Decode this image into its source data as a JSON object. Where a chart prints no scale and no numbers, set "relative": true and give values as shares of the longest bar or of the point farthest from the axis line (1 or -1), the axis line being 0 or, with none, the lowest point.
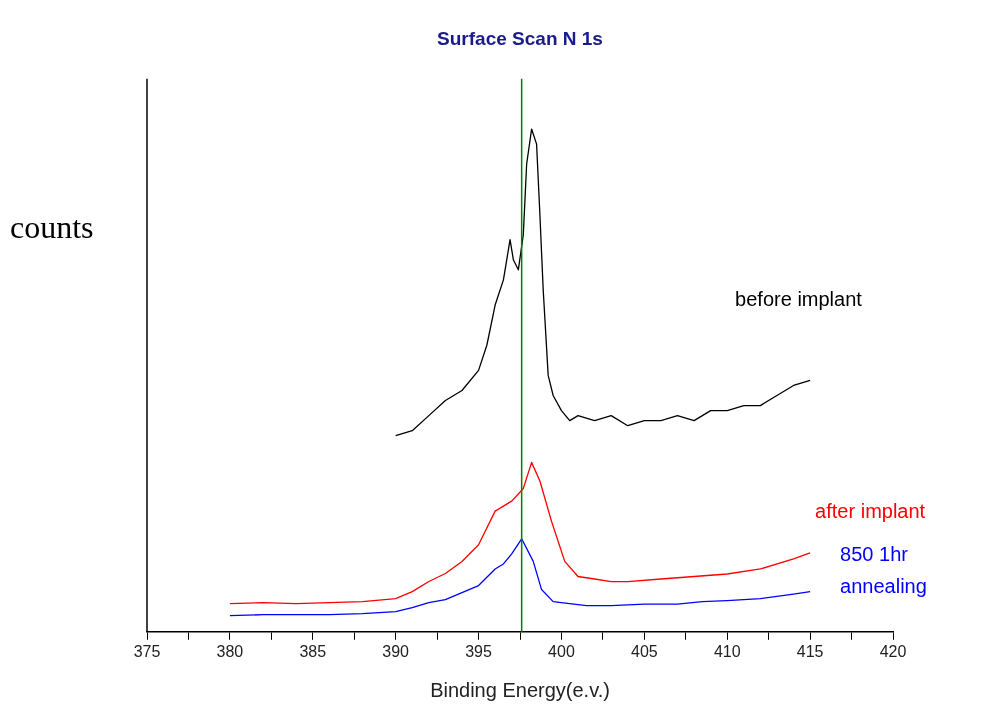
{
  "chart_data": {
    "type": "line",
    "title": "Surface Scan N 1s",
    "xlabel": "Binding Energy(e.v.)",
    "ylabel": "counts",
    "relative": true,
    "xlim": [
      375,
      420
    ],
    "xticks": [
      375,
      {
        "value": 377.5,
        "label": null
      },
      380,
      {
        "value": 382.5,
        "label": null
      },
      385,
      {
        "value": 387.5,
        "label": null
      },
      390,
      {
        "value": 392.5,
        "label": null
      },
      395,
      {
        "value": 397.5,
        "label": null
      },
      400,
      {
        "value": 402.5,
        "label": null
      },
      405,
      {
        "value": 407.5,
        "label": null
      },
      410,
      {
        "value": 412.5,
        "label": null
      },
      415,
      {
        "value": 417.5,
        "label": null
      },
      420
    ],
    "grid": false,
    "legend": false,
    "marker": "none",
    "line_style": "solid",
    "ref_lines": [
      {
        "axis": "x",
        "value": 397.6,
        "color": "#008000"
      }
    ],
    "series": [
      {
        "name": "before implant",
        "color": "#000000",
        "x": [
          390,
          391,
          392,
          393,
          394,
          395,
          395.5,
          396,
          396.5,
          396.9,
          397.1,
          397.4,
          397.7,
          397.9,
          398.2,
          398.5,
          398.7,
          398.9,
          399.2,
          399.5,
          400,
          400.5,
          401,
          402,
          403,
          404,
          405,
          406,
          407,
          408,
          409,
          410,
          411,
          412,
          413,
          414,
          415
        ],
        "values": [
          0.39,
          0.4,
          0.43,
          0.46,
          0.48,
          0.52,
          0.57,
          0.65,
          0.7,
          0.78,
          0.74,
          0.72,
          0.79,
          0.93,
          1.0,
          0.97,
          0.83,
          0.68,
          0.51,
          0.47,
          0.44,
          0.42,
          0.43,
          0.42,
          0.43,
          0.41,
          0.42,
          0.42,
          0.43,
          0.42,
          0.44,
          0.44,
          0.45,
          0.45,
          0.47,
          0.49,
          0.5
        ]
      },
      {
        "name": "after implant",
        "color": "#ff0000",
        "x": [
          380,
          382,
          384,
          386,
          388,
          390,
          391,
          392,
          393,
          394,
          395,
          396,
          396.5,
          397,
          397.7,
          398.2,
          398.7,
          399.4,
          400.2,
          401,
          402,
          403,
          404,
          406,
          408,
          410,
          412,
          414,
          415
        ],
        "values": [
          0.056,
          0.058,
          0.056,
          0.058,
          0.06,
          0.066,
          0.08,
          0.1,
          0.116,
          0.14,
          0.173,
          0.24,
          0.25,
          0.26,
          0.285,
          0.337,
          0.3,
          0.22,
          0.14,
          0.11,
          0.105,
          0.1,
          0.1,
          0.105,
          0.11,
          0.115,
          0.125,
          0.145,
          0.157
        ]
      },
      {
        "name": "850 1hr annealing",
        "color": "#0000ff",
        "x": [
          380,
          382,
          384,
          386,
          388,
          390,
          391,
          392,
          393,
          394,
          395,
          396,
          396.5,
          397,
          397.6,
          398.3,
          398.8,
          399.5,
          400.5,
          401.5,
          403,
          405,
          407,
          408.5,
          410,
          412,
          414,
          415
        ],
        "values": [
          0.032,
          0.034,
          0.034,
          0.034,
          0.036,
          0.04,
          0.048,
          0.058,
          0.064,
          0.078,
          0.092,
          0.125,
          0.135,
          0.155,
          0.185,
          0.14,
          0.084,
          0.06,
          0.056,
          0.052,
          0.052,
          0.055,
          0.055,
          0.06,
          0.062,
          0.066,
          0.075,
          0.08
        ]
      }
    ]
  }
}
